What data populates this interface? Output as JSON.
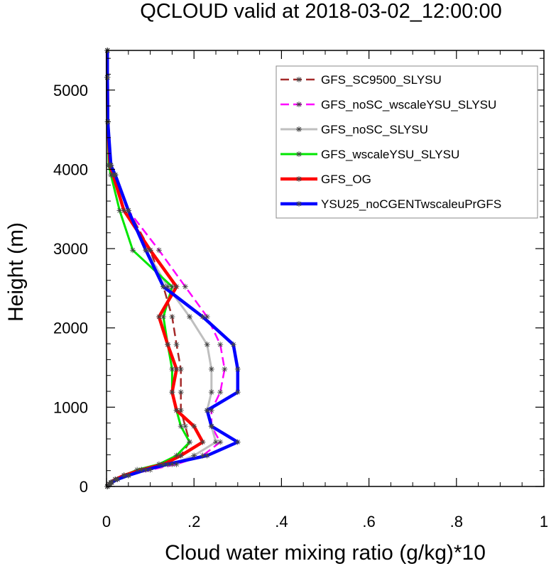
{
  "chart_data": {
    "type": "line",
    "title": "QCLOUD valid at 2018-03-02_12:00:00",
    "xlabel": "Cloud water mixing ratio (g/kg)*10",
    "ylabel": "Height (m)",
    "xlim": [
      0,
      1
    ],
    "ylim": [
      0,
      5500
    ],
    "xticks": [
      0,
      0.2,
      0.4,
      0.6,
      0.8,
      1
    ],
    "xtick_labels": [
      "0",
      ".2",
      ".4",
      ".6",
      ".8",
      "1"
    ],
    "yticks": [
      0,
      1000,
      2000,
      3000,
      4000,
      5000
    ],
    "ytick_labels": [
      "0",
      "1000",
      "2000",
      "3000",
      "4000",
      "5000"
    ],
    "grid": false,
    "legend": "top-right",
    "series": [
      {
        "name": "GFS_SC9500_SLYSU",
        "color": "#a52a2a",
        "dash": "dashed",
        "width": 2.5,
        "points": [
          [
            0.002,
            0
          ],
          [
            0.004,
            15
          ],
          [
            0.006,
            30
          ],
          [
            0.01,
            50
          ],
          [
            0.02,
            90
          ],
          [
            0.04,
            140
          ],
          [
            0.08,
            210
          ],
          [
            0.13,
            280
          ],
          [
            0.17,
            390
          ],
          [
            0.19,
            560
          ],
          [
            0.18,
            760
          ],
          [
            0.17,
            960
          ],
          [
            0.17,
            1190
          ],
          [
            0.17,
            1480
          ],
          [
            0.16,
            1790
          ],
          [
            0.15,
            2140
          ],
          [
            0.13,
            2520
          ],
          [
            0.1,
            2980
          ],
          [
            0.05,
            3480
          ],
          [
            0.02,
            3930
          ],
          [
            0.01,
            4050
          ],
          [
            0.003,
            4600
          ],
          [
            0.002,
            5160
          ],
          [
            0.002,
            5500
          ]
        ]
      },
      {
        "name": "GFS_noSC_wscaleYSU_SLYSU",
        "color": "#ff00ff",
        "dash": "dashed",
        "width": 2.5,
        "points": [
          [
            0.002,
            0
          ],
          [
            0.004,
            15
          ],
          [
            0.007,
            30
          ],
          [
            0.012,
            50
          ],
          [
            0.025,
            90
          ],
          [
            0.05,
            140
          ],
          [
            0.1,
            210
          ],
          [
            0.16,
            280
          ],
          [
            0.22,
            390
          ],
          [
            0.26,
            560
          ],
          [
            0.24,
            760
          ],
          [
            0.24,
            960
          ],
          [
            0.26,
            1190
          ],
          [
            0.27,
            1480
          ],
          [
            0.26,
            1790
          ],
          [
            0.23,
            2140
          ],
          [
            0.18,
            2520
          ],
          [
            0.12,
            2980
          ],
          [
            0.05,
            3480
          ],
          [
            0.02,
            3930
          ],
          [
            0.01,
            4050
          ],
          [
            0.003,
            4600
          ],
          [
            0.002,
            5160
          ],
          [
            0.002,
            5500
          ]
        ]
      },
      {
        "name": "GFS_noSC_SLYSU",
        "color": "#bfbfbf",
        "dash": "solid",
        "width": 3,
        "points": [
          [
            0.002,
            0
          ],
          [
            0.004,
            15
          ],
          [
            0.007,
            30
          ],
          [
            0.012,
            50
          ],
          [
            0.025,
            90
          ],
          [
            0.05,
            140
          ],
          [
            0.09,
            210
          ],
          [
            0.15,
            280
          ],
          [
            0.2,
            390
          ],
          [
            0.25,
            560
          ],
          [
            0.24,
            760
          ],
          [
            0.23,
            960
          ],
          [
            0.24,
            1190
          ],
          [
            0.24,
            1480
          ],
          [
            0.23,
            1790
          ],
          [
            0.19,
            2140
          ],
          [
            0.14,
            2520
          ],
          [
            0.09,
            2980
          ],
          [
            0.05,
            3480
          ],
          [
            0.02,
            3930
          ],
          [
            0.01,
            4050
          ],
          [
            0.003,
            4600
          ],
          [
            0.002,
            5160
          ],
          [
            0.002,
            5500
          ]
        ]
      },
      {
        "name": "GFS_wscaleYSU_SLYSU",
        "color": "#00e600",
        "dash": "solid",
        "width": 3,
        "points": [
          [
            0.002,
            0
          ],
          [
            0.004,
            15
          ],
          [
            0.006,
            30
          ],
          [
            0.01,
            50
          ],
          [
            0.02,
            90
          ],
          [
            0.04,
            140
          ],
          [
            0.07,
            210
          ],
          [
            0.12,
            280
          ],
          [
            0.16,
            390
          ],
          [
            0.19,
            560
          ],
          [
            0.17,
            760
          ],
          [
            0.16,
            960
          ],
          [
            0.15,
            1190
          ],
          [
            0.15,
            1480
          ],
          [
            0.14,
            1790
          ],
          [
            0.13,
            2140
          ],
          [
            0.15,
            2520
          ],
          [
            0.06,
            2980
          ],
          [
            0.03,
            3480
          ],
          [
            0.01,
            3930
          ],
          [
            0.005,
            4050
          ],
          [
            0.003,
            4600
          ],
          [
            0.002,
            5160
          ],
          [
            0.002,
            5500
          ]
        ]
      },
      {
        "name": "GFS_OG",
        "color": "#ff0000",
        "dash": "solid",
        "width": 4.5,
        "points": [
          [
            0.002,
            0
          ],
          [
            0.004,
            15
          ],
          [
            0.006,
            30
          ],
          [
            0.01,
            50
          ],
          [
            0.02,
            90
          ],
          [
            0.04,
            140
          ],
          [
            0.08,
            210
          ],
          [
            0.13,
            280
          ],
          [
            0.17,
            390
          ],
          [
            0.22,
            560
          ],
          [
            0.2,
            760
          ],
          [
            0.16,
            960
          ],
          [
            0.15,
            1190
          ],
          [
            0.16,
            1480
          ],
          [
            0.14,
            1790
          ],
          [
            0.12,
            2140
          ],
          [
            0.16,
            2520
          ],
          [
            0.1,
            2980
          ],
          [
            0.04,
            3480
          ],
          [
            0.015,
            3930
          ],
          [
            0.008,
            4050
          ],
          [
            0.003,
            4600
          ],
          [
            0.002,
            5160
          ],
          [
            0.002,
            5500
          ]
        ]
      },
      {
        "name": "YSU25_noCGENTwscaleuPrGFS",
        "color": "#0000ff",
        "dash": "solid",
        "width": 4.5,
        "points": [
          [
            0.002,
            0
          ],
          [
            0.004,
            15
          ],
          [
            0.007,
            30
          ],
          [
            0.012,
            50
          ],
          [
            0.025,
            90
          ],
          [
            0.05,
            140
          ],
          [
            0.09,
            210
          ],
          [
            0.14,
            280
          ],
          [
            0.23,
            390
          ],
          [
            0.3,
            560
          ],
          [
            0.24,
            760
          ],
          [
            0.23,
            960
          ],
          [
            0.3,
            1190
          ],
          [
            0.3,
            1480
          ],
          [
            0.29,
            1790
          ],
          [
            0.22,
            2140
          ],
          [
            0.13,
            2520
          ],
          [
            0.09,
            2980
          ],
          [
            0.05,
            3480
          ],
          [
            0.02,
            3930
          ],
          [
            0.01,
            4050
          ],
          [
            0.003,
            4600
          ],
          [
            0.002,
            5160
          ],
          [
            0.002,
            5500
          ]
        ]
      }
    ]
  }
}
